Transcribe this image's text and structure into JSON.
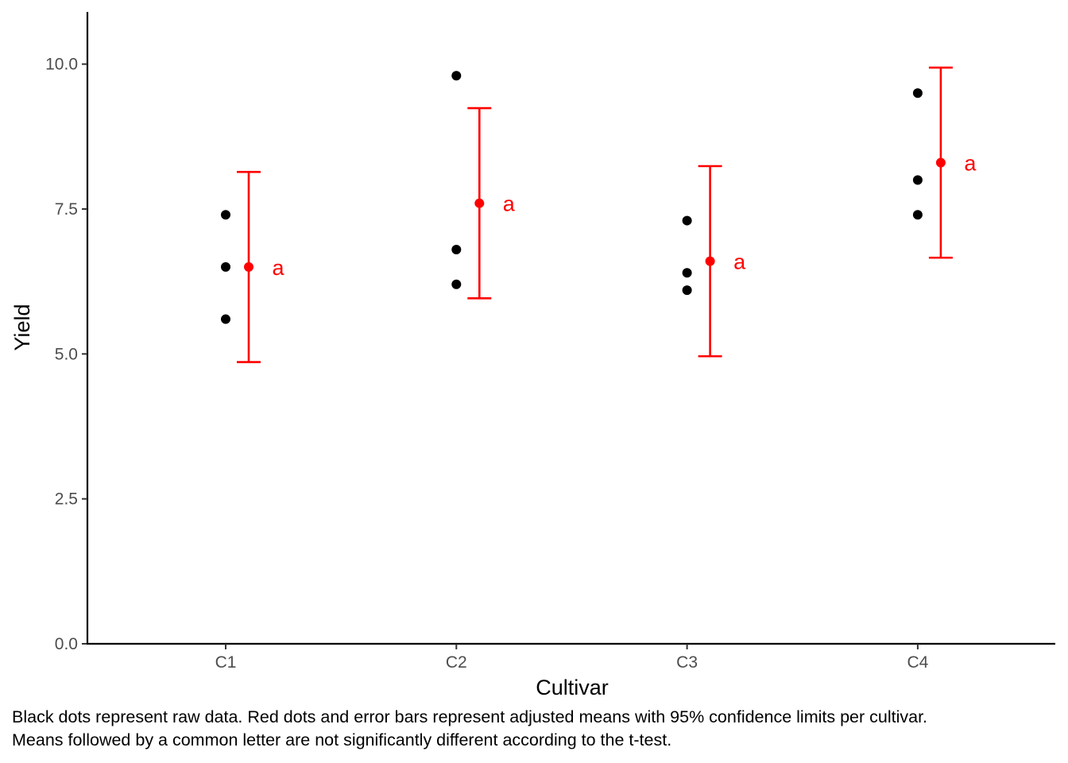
{
  "chart_data": {
    "type": "scatter",
    "xlabel": "Cultivar",
    "ylabel": "Yield",
    "categories": [
      "C1",
      "C2",
      "C3",
      "C4"
    ],
    "ylim": [
      0,
      10.9
    ],
    "y_ticks": [
      0.0,
      2.5,
      5.0,
      7.5,
      10.0
    ],
    "y_tick_labels": [
      "0.0",
      "2.5",
      "5.0",
      "7.5",
      "10.0"
    ],
    "grid": false,
    "raw_data": [
      {
        "category": "C1",
        "values": [
          7.4,
          6.5,
          5.6
        ]
      },
      {
        "category": "C2",
        "values": [
          9.8,
          6.8,
          6.2
        ]
      },
      {
        "category": "C3",
        "values": [
          7.3,
          6.4,
          6.1
        ]
      },
      {
        "category": "C4",
        "values": [
          9.5,
          8.0,
          7.4
        ]
      }
    ],
    "adjusted_means": [
      {
        "category": "C1",
        "mean": 6.5,
        "lower": 4.86,
        "upper": 8.14,
        "letter": "a"
      },
      {
        "category": "C2",
        "mean": 7.6,
        "lower": 5.96,
        "upper": 9.24,
        "letter": "a"
      },
      {
        "category": "C3",
        "mean": 6.6,
        "lower": 4.96,
        "upper": 8.24,
        "letter": "a"
      },
      {
        "category": "C4",
        "mean": 8.3,
        "lower": 6.66,
        "upper": 9.94,
        "letter": "a"
      }
    ],
    "colors": {
      "raw": "#000000",
      "means": "#ff0000",
      "axis": "#000000",
      "tick_text": "#4d4d4d"
    }
  },
  "caption": {
    "line1": "Black dots represent raw data. Red dots and error bars represent adjusted means with 95% confidence limits per cultivar.",
    "line2": "Means followed by a common letter are not significantly different according to the t-test."
  }
}
